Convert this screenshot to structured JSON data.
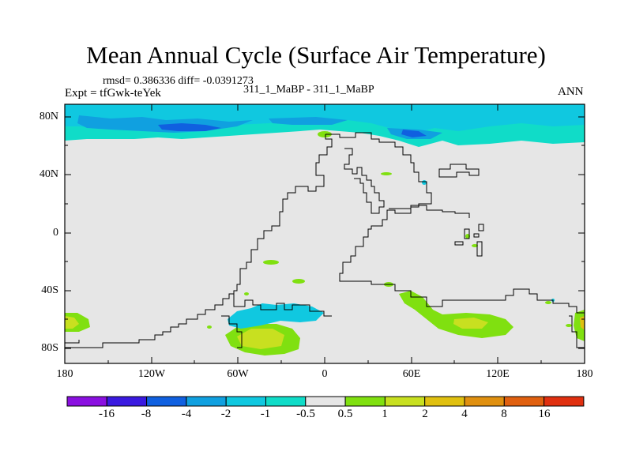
{
  "title": "Mean Annual Cycle (Surface Air Temperature)",
  "stats": "rmsd= 0.386336 diff= -0.0391273",
  "expt": "Expt = tfGwk-teYek",
  "subtitle": "311_1_MaBP - 311_1_MaBP",
  "season": "ANN",
  "lat_labels": [
    "80N",
    "40N",
    "0",
    "40S",
    "80S"
  ],
  "lon_labels": [
    "180",
    "120W",
    "60W",
    "0",
    "60E",
    "120E",
    "180"
  ],
  "colorbar": {
    "labels": [
      "-16",
      "-8",
      "-4",
      "-2",
      "-1",
      "-0.5",
      "0.5",
      "1",
      "2",
      "4",
      "8",
      "16"
    ],
    "colors": [
      "#8a10e0",
      "#3a1ae0",
      "#1060e0",
      "#10a0e0",
      "#10c8e0",
      "#10dcc8",
      "#e6e6e6",
      "#80e010",
      "#c8e020",
      "#e0c010",
      "#e09010",
      "#e06010",
      "#e03010"
    ]
  },
  "chart_data": {
    "type": "heatmap",
    "title": "Mean Annual Cycle (Surface Air Temperature)",
    "variable": "Surface Air Temperature difference",
    "x_range": [
      -180,
      180
    ],
    "y_range": [
      -90,
      90
    ],
    "levels": [
      -16,
      -8,
      -4,
      -2,
      -1,
      -0.5,
      0.5,
      1,
      2,
      4,
      8,
      16
    ]
  }
}
